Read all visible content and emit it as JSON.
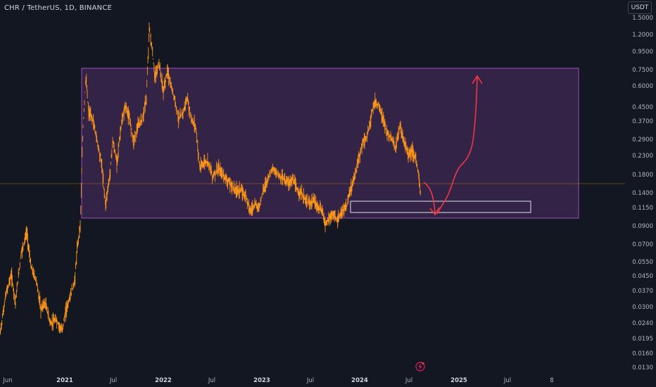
{
  "header": {
    "title": "CHR / TetherUS, 1D, BINANCE",
    "currency_button": "USDT"
  },
  "price_axis": [
    "1.5000",
    "1.2000",
    "0.9500",
    "0.7500",
    "0.6000",
    "0.4500",
    "0.3700",
    "0.2900",
    "0.2300",
    "0.1800",
    "0.1400",
    "0.1150",
    "0.0900",
    "0.0700",
    "0.0550",
    "0.0450",
    "0.0370",
    "0.0300",
    "0.0240",
    "0.0195",
    "0.0160",
    "0.0130"
  ],
  "time_axis": [
    {
      "label": "Jun",
      "year": false
    },
    {
      "label": "2021",
      "year": true
    },
    {
      "label": "Jul",
      "year": false
    },
    {
      "label": "2022",
      "year": true
    },
    {
      "label": "Jul",
      "year": false
    },
    {
      "label": "2023",
      "year": true
    },
    {
      "label": "Jul",
      "year": false
    },
    {
      "label": "2024",
      "year": true
    },
    {
      "label": "Jul",
      "year": false
    },
    {
      "label": "2025",
      "year": true
    },
    {
      "label": "Jul",
      "year": false
    },
    {
      "label": "8",
      "year": false
    }
  ],
  "icons": {
    "event": "lightning-event-icon"
  },
  "colors": {
    "background": "#131722",
    "price_line": "#f7931a",
    "range_box": "#9c27b0",
    "target_box": "#d1d4dc",
    "arrow": "#f23645"
  }
}
